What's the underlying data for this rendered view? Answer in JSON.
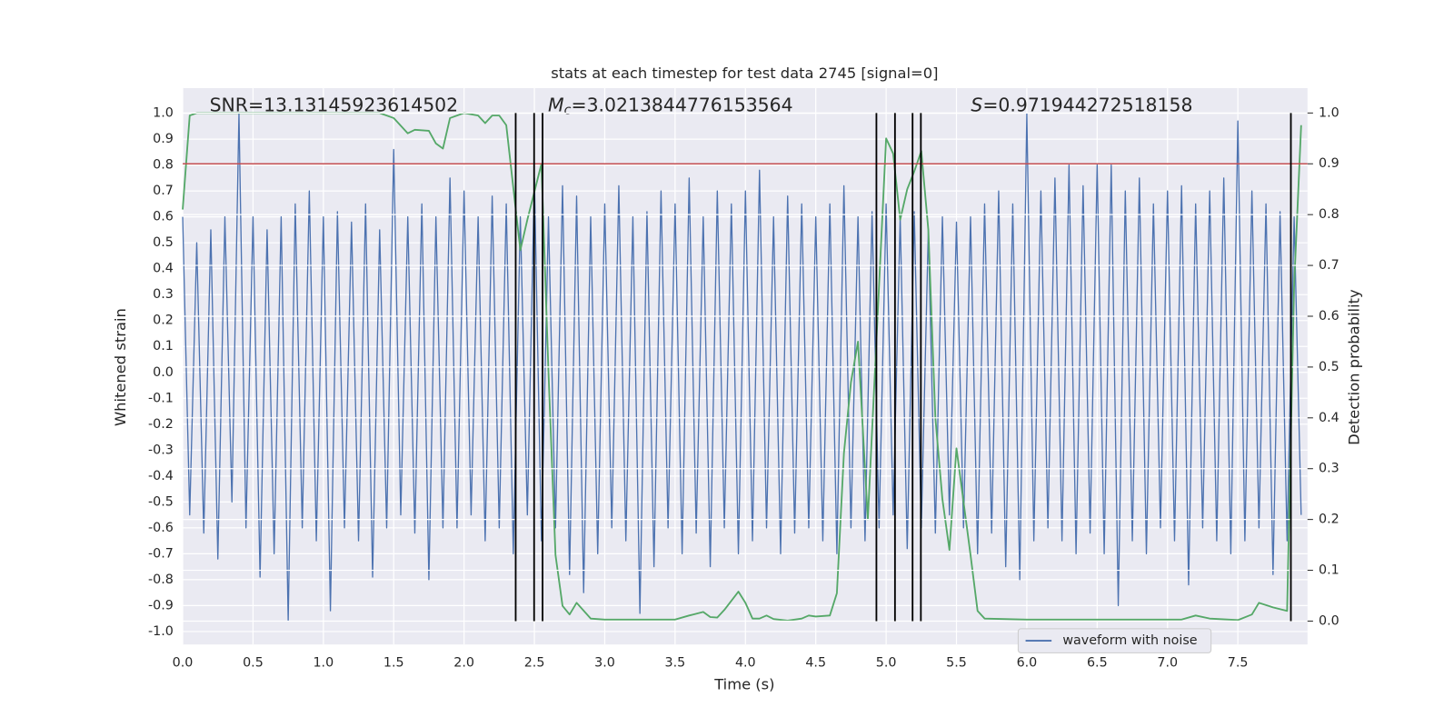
{
  "chart_data": {
    "type": "line",
    "title": "stats at each timestep for test data 2745 [signal=0]",
    "xlabel": "Time (s)",
    "ylabel": "Whitened strain",
    "y2label": "Detection probability",
    "annotations": [
      {
        "text": "SNR=13.13145923614502"
      },
      {
        "symbol": "M",
        "subscript": "c",
        "text": "=3.0213844776153564"
      },
      {
        "symbol": "S",
        "text": "=0.971944272518158"
      }
    ],
    "xlim": [
      0,
      7.995
    ],
    "ylim": [
      -1.05,
      1.097
    ],
    "y2lim": [
      -0.046,
      1.049
    ],
    "xticks": [
      {
        "value": 0,
        "label": "0.0"
      },
      0.5,
      {
        "value": 1,
        "label": "1.0"
      },
      1.5,
      {
        "value": 2,
        "label": "2.0"
      },
      2.5,
      {
        "value": 3,
        "label": "3.0"
      },
      3.5,
      {
        "value": 4,
        "label": "4.0"
      },
      4.5,
      {
        "value": 5,
        "label": "5.0"
      },
      5.5,
      {
        "value": 6,
        "label": "6.0"
      },
      6.5,
      {
        "value": 7,
        "label": "7.0"
      },
      7.5
    ],
    "yticks": [
      {
        "value": -1,
        "label": "-1.0"
      },
      -0.9,
      -0.8,
      -0.7,
      -0.6,
      -0.5,
      -0.4,
      -0.3,
      -0.2,
      -0.1,
      {
        "value": 0,
        "label": "0.0"
      },
      0.1,
      0.2,
      0.3,
      0.4,
      0.5,
      0.6,
      0.7,
      0.8,
      0.9,
      {
        "value": 1,
        "label": "1.0"
      }
    ],
    "y2ticks": [
      {
        "value": 0,
        "label": "0.0"
      },
      0.1,
      0.2,
      0.3,
      0.4,
      0.5,
      0.6,
      0.7,
      0.8,
      0.9,
      {
        "value": 1,
        "label": "1.0"
      }
    ],
    "grid": true,
    "legend_loc": "lower right",
    "vlines": [
      2.367,
      2.498,
      2.558,
      4.931,
      5.063,
      5.188,
      5.247,
      7.877
    ],
    "vline_color": "#000000",
    "hline": {
      "value": 0.9,
      "axis": "y2",
      "color": "#c44e52"
    },
    "series": [
      {
        "name": "waveform with noise",
        "color": "#4c72b0",
        "x": [
          0,
          0.05,
          0.1,
          0.15,
          0.2,
          0.25,
          0.3,
          0.35,
          0.4,
          0.45,
          0.5,
          0.55,
          0.6,
          0.65,
          0.7,
          0.75,
          0.8,
          0.85,
          0.9,
          0.95,
          1.0,
          1.05,
          1.1,
          1.15,
          1.2,
          1.25,
          1.3,
          1.35,
          1.4,
          1.45,
          1.5,
          1.55,
          1.6,
          1.65,
          1.7,
          1.75,
          1.8,
          1.85,
          1.9,
          1.95,
          2.0,
          2.05,
          2.1,
          2.15,
          2.2,
          2.25,
          2.3,
          2.35,
          2.4,
          2.45,
          2.5,
          2.55,
          2.6,
          2.65,
          2.7,
          2.75,
          2.8,
          2.85,
          2.9,
          2.95,
          3.0,
          3.05,
          3.1,
          3.15,
          3.2,
          3.25,
          3.3,
          3.35,
          3.4,
          3.45,
          3.5,
          3.55,
          3.6,
          3.65,
          3.7,
          3.75,
          3.8,
          3.85,
          3.9,
          3.95,
          4.0,
          4.05,
          4.1,
          4.15,
          4.2,
          4.25,
          4.3,
          4.35,
          4.4,
          4.45,
          4.5,
          4.55,
          4.6,
          4.65,
          4.7,
          4.75,
          4.8,
          4.85,
          4.9,
          4.95,
          5.0,
          5.05,
          5.1,
          5.15,
          5.2,
          5.25,
          5.3,
          5.35,
          5.4,
          5.45,
          5.5,
          5.55,
          5.6,
          5.65,
          5.7,
          5.75,
          5.8,
          5.85,
          5.9,
          5.95,
          6.0,
          6.05,
          6.1,
          6.15,
          6.2,
          6.25,
          6.3,
          6.35,
          6.4,
          6.45,
          6.5,
          6.55,
          6.6,
          6.65,
          6.7,
          6.75,
          6.8,
          6.85,
          6.9,
          6.95,
          7.0,
          7.05,
          7.1,
          7.15,
          7.2,
          7.25,
          7.3,
          7.35,
          7.4,
          7.45,
          7.5,
          7.55,
          7.6,
          7.65,
          7.7,
          7.75,
          7.8,
          7.85,
          7.9,
          7.95
        ],
        "values": [
          0.6,
          -0.55,
          0.5,
          -0.62,
          0.55,
          -0.72,
          0.6,
          -0.5,
          1.0,
          -0.6,
          0.6,
          -0.79,
          0.55,
          -0.7,
          0.6,
          -0.96,
          0.65,
          -0.6,
          0.7,
          -0.65,
          0.6,
          -0.92,
          0.62,
          -0.6,
          0.58,
          -0.65,
          0.65,
          -0.79,
          0.55,
          -0.6,
          0.86,
          -0.55,
          0.6,
          -0.62,
          0.65,
          -0.8,
          0.6,
          -0.6,
          0.75,
          -0.6,
          0.7,
          -0.55,
          0.6,
          -0.65,
          0.68,
          -0.6,
          0.65,
          -0.7,
          0.6,
          -0.55,
          0.75,
          -0.65,
          0.6,
          -0.6,
          0.72,
          -0.78,
          0.68,
          -0.85,
          0.6,
          -0.7,
          0.65,
          -0.6,
          0.72,
          -0.65,
          0.6,
          -0.93,
          0.62,
          -0.75,
          0.7,
          -0.6,
          0.65,
          -0.7,
          0.75,
          -0.62,
          0.6,
          -0.75,
          0.7,
          -0.6,
          0.65,
          -0.7,
          0.7,
          -0.65,
          0.78,
          -0.6,
          0.6,
          -0.7,
          0.68,
          -0.62,
          0.65,
          -0.6,
          0.6,
          -0.65,
          0.65,
          -0.7,
          0.72,
          -0.6,
          0.6,
          -0.65,
          0.62,
          -0.6,
          0.65,
          -0.55,
          0.6,
          -0.68,
          0.62,
          -0.6,
          0.55,
          -0.62,
          0.6,
          -0.55,
          0.58,
          -0.6,
          0.6,
          -0.7,
          0.65,
          -0.62,
          0.7,
          -0.75,
          0.65,
          -0.8,
          1.0,
          -0.65,
          0.7,
          -0.6,
          0.75,
          -0.65,
          0.8,
          -0.7,
          0.72,
          -0.62,
          0.8,
          -0.7,
          0.8,
          -0.9,
          0.7,
          -0.65,
          0.75,
          -0.7,
          0.65,
          -0.6,
          0.7,
          -0.65,
          0.72,
          -0.82,
          0.65,
          -0.6,
          0.7,
          -0.65,
          0.75,
          -0.7,
          0.97,
          -0.65,
          0.7,
          -0.6,
          0.65,
          -0.78,
          0.62,
          -0.65,
          0.6,
          -0.55
        ]
      },
      {
        "color": "#55a868",
        "axis": "y2",
        "x": [
          0,
          0.05,
          0.1,
          0.5,
          1.0,
          1.4,
          1.5,
          1.6,
          1.65,
          1.75,
          1.8,
          1.85,
          1.9,
          2.0,
          2.1,
          2.15,
          2.2,
          2.25,
          2.3,
          2.4,
          2.45,
          2.55,
          2.6,
          2.65,
          2.7,
          2.75,
          2.8,
          2.9,
          3.0,
          3.5,
          3.6,
          3.7,
          3.75,
          3.8,
          3.85,
          3.95,
          4.0,
          4.05,
          4.1,
          4.15,
          4.2,
          4.3,
          4.4,
          4.45,
          4.5,
          4.6,
          4.65,
          4.7,
          4.75,
          4.8,
          4.87,
          5.0,
          5.05,
          5.1,
          5.15,
          5.2,
          5.25,
          5.3,
          5.35,
          5.4,
          5.45,
          5.5,
          5.6,
          5.65,
          5.7,
          6.0,
          7.1,
          7.2,
          7.3,
          7.5,
          7.6,
          7.65,
          7.75,
          7.85,
          7.9,
          7.95
        ],
        "values": [
          0.81,
          0.995,
          1.0,
          1.0,
          1.0,
          1.0,
          0.99,
          0.96,
          0.967,
          0.965,
          0.94,
          0.93,
          0.99,
          1.0,
          0.995,
          0.98,
          0.995,
          0.995,
          0.976,
          0.73,
          0.79,
          0.9,
          0.49,
          0.13,
          0.03,
          0.013,
          0.036,
          0.005,
          0.003,
          0.003,
          0.011,
          0.018,
          0.008,
          0.007,
          0.022,
          0.058,
          0.036,
          0.005,
          0.005,
          0.011,
          0.004,
          0.001,
          0.005,
          0.011,
          0.009,
          0.011,
          0.055,
          0.33,
          0.47,
          0.55,
          0.2,
          0.95,
          0.92,
          0.79,
          0.85,
          0.885,
          0.925,
          0.77,
          0.4,
          0.24,
          0.14,
          0.34,
          0.13,
          0.02,
          0.005,
          0.003,
          0.003,
          0.011,
          0.005,
          0.002,
          0.013,
          0.036,
          0.027,
          0.02,
          0.66,
          0.976
        ]
      }
    ]
  }
}
